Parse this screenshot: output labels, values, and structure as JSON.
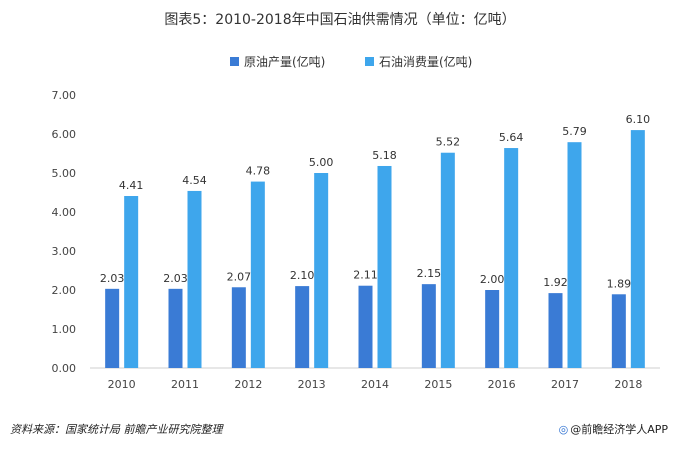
{
  "chart_data": {
    "type": "bar",
    "title": "图表5：2010-2018年中国石油供需情况（单位：亿吨）",
    "categories": [
      "2010",
      "2011",
      "2012",
      "2013",
      "2014",
      "2015",
      "2016",
      "2017",
      "2018"
    ],
    "series": [
      {
        "name": "原油产量(亿吨)",
        "color": "#3a7bd5",
        "values": [
          2.03,
          2.03,
          2.07,
          2.1,
          2.11,
          2.15,
          2.0,
          1.92,
          1.89
        ]
      },
      {
        "name": "石油消费量(亿吨)",
        "color": "#3ea6ec",
        "values": [
          4.41,
          4.54,
          4.78,
          5.0,
          5.18,
          5.52,
          5.64,
          5.79,
          6.1
        ]
      }
    ],
    "y_ticks": [
      "0.00",
      "1.00",
      "2.00",
      "3.00",
      "4.00",
      "5.00",
      "6.00",
      "7.00"
    ],
    "ylim": [
      0,
      7
    ],
    "xlabel": "",
    "ylabel": "",
    "legend_position": "top-center",
    "grid": false
  },
  "footer": {
    "source": "资料来源：国家统计局 前瞻产业研究院整理",
    "brand": "@前瞻经济学人APP"
  }
}
